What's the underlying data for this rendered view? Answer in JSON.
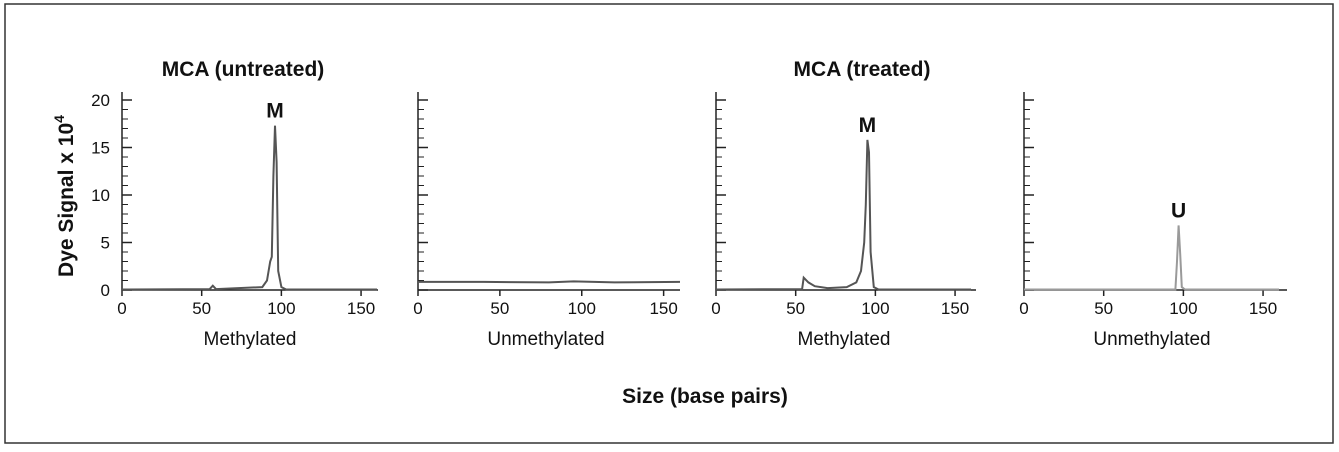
{
  "figure": {
    "group_titles": [
      "MCA (untreated)",
      "MCA (treated)"
    ],
    "ylabel_main": "Dye Signal x 10",
    "ylabel_exp": "4",
    "xlabel": "Size (base pairs)"
  },
  "chart_data": [
    {
      "type": "line",
      "group": "MCA (untreated)",
      "xlabel": "Methylated",
      "xlim": [
        0,
        160
      ],
      "ylim": [
        0,
        20
      ],
      "x_ticks": [
        0,
        50,
        100,
        150
      ],
      "y_ticks": [
        0,
        5,
        10,
        15,
        20
      ],
      "y_tick_labels_visible": true,
      "annotations": [
        {
          "text": "M",
          "x": 96,
          "y": 17.3
        }
      ],
      "series": [
        {
          "points": [
            [
              0,
              0.05
            ],
            [
              55,
              0.1
            ],
            [
              57,
              0.45
            ],
            [
              59,
              0.1
            ],
            [
              88,
              0.3
            ],
            [
              91,
              1.0
            ],
            [
              93,
              3.0
            ],
            [
              94,
              3.5
            ],
            [
              95,
              12.0
            ],
            [
              96,
              17.3
            ],
            [
              97,
              13.5
            ],
            [
              98,
              2.0
            ],
            [
              100,
              0.3
            ],
            [
              103,
              0.05
            ],
            [
              160,
              0.05
            ]
          ]
        }
      ]
    },
    {
      "type": "line",
      "group": "MCA (untreated)",
      "xlabel": "Unmethylated",
      "xlim": [
        0,
        160
      ],
      "ylim": [
        0,
        20
      ],
      "x_ticks": [
        0,
        50,
        100,
        150
      ],
      "y_ticks": [
        0,
        5,
        10,
        15,
        20
      ],
      "y_tick_labels_visible": false,
      "annotations": [],
      "series": [
        {
          "points": [
            [
              0,
              0.85
            ],
            [
              40,
              0.85
            ],
            [
              80,
              0.8
            ],
            [
              95,
              0.9
            ],
            [
              120,
              0.8
            ],
            [
              160,
              0.85
            ]
          ]
        }
      ]
    },
    {
      "type": "line",
      "group": "MCA (treated)",
      "xlabel": "Methylated",
      "xlim": [
        0,
        160
      ],
      "ylim": [
        0,
        20
      ],
      "x_ticks": [
        0,
        50,
        100,
        150
      ],
      "y_ticks": [
        0,
        5,
        10,
        15,
        20
      ],
      "y_tick_labels_visible": false,
      "annotations": [
        {
          "text": "M",
          "x": 95,
          "y": 15.8
        }
      ],
      "series": [
        {
          "points": [
            [
              0,
              0.05
            ],
            [
              54,
              0.1
            ],
            [
              55,
              1.3
            ],
            [
              58,
              0.8
            ],
            [
              62,
              0.4
            ],
            [
              70,
              0.2
            ],
            [
              82,
              0.3
            ],
            [
              88,
              0.8
            ],
            [
              91,
              2.0
            ],
            [
              93,
              5.0
            ],
            [
              94,
              9.0
            ],
            [
              95,
              15.8
            ],
            [
              96,
              14.5
            ],
            [
              97,
              4.0
            ],
            [
              99,
              0.3
            ],
            [
              102,
              0.05
            ],
            [
              160,
              0.05
            ]
          ]
        }
      ]
    },
    {
      "type": "line",
      "group": "MCA (treated)",
      "xlabel": "Unmethylated",
      "xlim": [
        0,
        160
      ],
      "ylim": [
        0,
        20
      ],
      "x_ticks": [
        0,
        50,
        100,
        150
      ],
      "y_ticks": [
        0,
        5,
        10,
        15,
        20
      ],
      "y_tick_labels_visible": false,
      "annotations": [
        {
          "text": "U",
          "x": 97,
          "y": 6.8
        }
      ],
      "series": [
        {
          "points": [
            [
              0,
              0.05
            ],
            [
              95,
              0.05
            ],
            [
              96,
              3.0
            ],
            [
              97,
              6.8
            ],
            [
              98,
              3.8
            ],
            [
              99,
              0.3
            ],
            [
              101,
              0.05
            ],
            [
              160,
              0.05
            ]
          ]
        }
      ]
    }
  ]
}
